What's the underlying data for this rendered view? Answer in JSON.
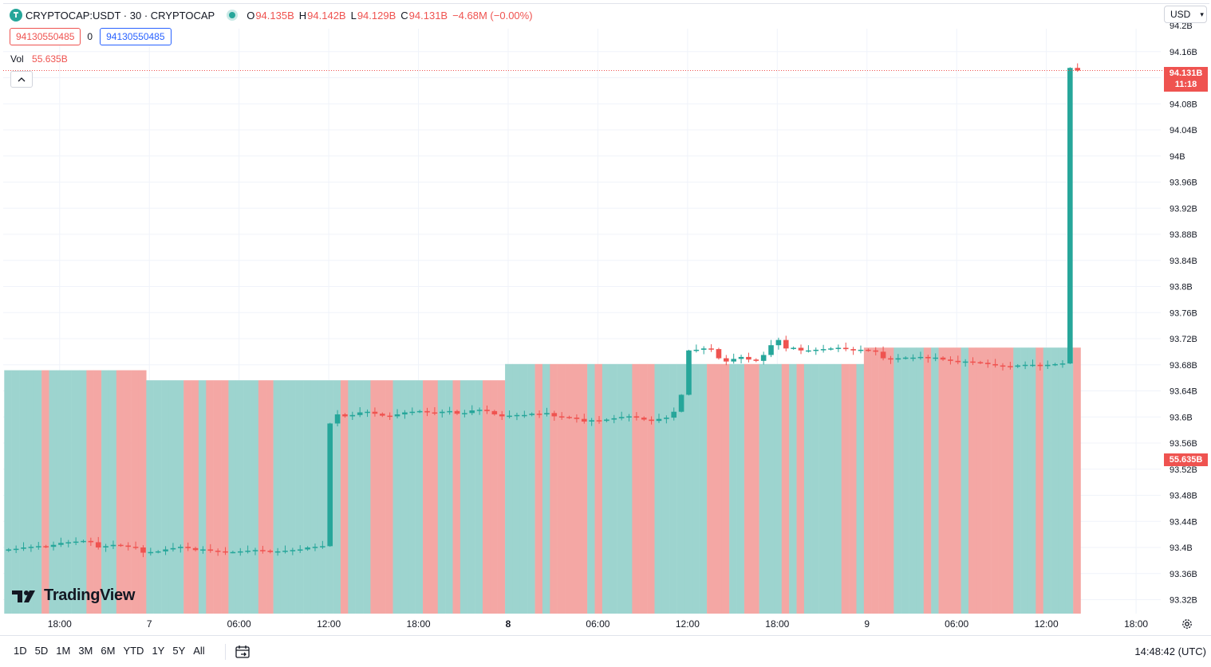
{
  "legend": {
    "symbol": "CRYPTOCAP:USDT · 30 · CRYPTOCAP",
    "o_label": "O",
    "o_value": "94.135B",
    "h_label": "H",
    "h_value": "94.142B",
    "l_label": "L",
    "l_value": "94.129B",
    "c_label": "C",
    "c_value": "94.131B",
    "change": "−4.68M (−0.00%)"
  },
  "inputs": {
    "left": "94130550485",
    "middle": "0",
    "right": "94130550485"
  },
  "volume": {
    "label": "Vol",
    "value": "55.635B"
  },
  "currency": {
    "label": "USD"
  },
  "price_tag": {
    "price": "94.131B",
    "countdown": "11:18"
  },
  "volume_tag": "55.635B",
  "watermark": "TradingView",
  "time_ranges": [
    "1D",
    "5D",
    "1M",
    "3M",
    "6M",
    "YTD",
    "1Y",
    "5Y",
    "All"
  ],
  "clock": "14:48:42 (UTC)",
  "colors": {
    "up": "#26a69a",
    "down": "#ef5350",
    "vol_up": "#9dd4cf",
    "vol_down": "#f4a7a4",
    "grid": "#f0f3fa"
  },
  "icons": {
    "logo": "tether-logo-icon",
    "collapse": "chevron-up-icon",
    "settings": "gear-icon",
    "goto": "calendar-goto-icon",
    "currency_dropdown": "chevron-down-icon"
  },
  "chart_data": {
    "type": "candlestick",
    "interval": "30",
    "y_unit": "B",
    "y_ticks": [
      "94.2B",
      "94.16B",
      "94.12B",
      "94.08B",
      "94.04B",
      "94B",
      "93.96B",
      "93.92B",
      "93.88B",
      "93.84B",
      "93.8B",
      "93.76B",
      "93.72B",
      "93.68B",
      "93.64B",
      "93.6B",
      "93.56B",
      "93.52B",
      "93.48B",
      "93.44B",
      "93.4B",
      "93.36B",
      "93.32B"
    ],
    "y_tick_values": [
      94.2,
      94.16,
      94.12,
      94.08,
      94.04,
      94.0,
      93.96,
      93.92,
      93.88,
      93.84,
      93.8,
      93.76,
      93.72,
      93.68,
      93.64,
      93.6,
      93.56,
      93.52,
      93.48,
      93.44,
      93.4,
      93.36,
      93.32
    ],
    "x_ticks": [
      {
        "label": "18:00",
        "bold": false
      },
      {
        "label": "7",
        "bold": false
      },
      {
        "label": "06:00",
        "bold": false
      },
      {
        "label": "12:00",
        "bold": false
      },
      {
        "label": "18:00",
        "bold": false
      },
      {
        "label": "8",
        "bold": true
      },
      {
        "label": "06:00",
        "bold": false
      },
      {
        "label": "12:00",
        "bold": false
      },
      {
        "label": "18:00",
        "bold": false
      },
      {
        "label": "9",
        "bold": false
      },
      {
        "label": "06:00",
        "bold": false
      },
      {
        "label": "12:00",
        "bold": false
      },
      {
        "label": "18:00",
        "bold": false
      }
    ],
    "x_tick_bar_index": [
      0,
      12,
      24,
      36,
      48,
      60,
      72,
      84,
      96,
      108,
      120,
      132,
      144
    ],
    "last_price": 94.131,
    "volume_last": 55.635,
    "volume_unit": "B",
    "volume_segments": [
      {
        "from_bar": 0,
        "to_bar": 18,
        "value": 50.9
      },
      {
        "from_bar": 19,
        "to_bar": 66,
        "value": 48.8
      },
      {
        "from_bar": 67,
        "to_bar": 114,
        "value": 52.2
      },
      {
        "from_bar": 115,
        "to_bar": 144,
        "value": 55.635
      }
    ],
    "volume_max": 80,
    "closes": [
      93.397,
      93.398,
      93.4,
      93.401,
      93.402,
      93.401,
      93.404,
      93.407,
      93.408,
      93.409,
      93.41,
      93.408,
      93.4,
      93.402,
      93.404,
      93.403,
      93.401,
      93.4,
      93.392,
      93.393,
      93.394,
      93.397,
      93.399,
      93.401,
      93.399,
      93.396,
      93.397,
      93.395,
      93.394,
      93.393,
      93.393,
      93.394,
      93.395,
      93.396,
      93.395,
      93.393,
      93.394,
      93.395,
      93.396,
      93.397,
      93.4,
      93.401,
      93.402,
      93.59,
      93.604,
      93.601,
      93.603,
      93.607,
      93.608,
      93.605,
      93.602,
      93.601,
      93.604,
      93.607,
      93.608,
      93.609,
      93.607,
      93.606,
      93.608,
      93.609,
      93.605,
      93.606,
      93.61,
      93.611,
      93.609,
      93.604,
      93.601,
      93.602,
      93.603,
      93.603,
      93.605,
      93.604,
      93.606,
      93.601,
      93.6,
      93.599,
      93.597,
      93.593,
      93.595,
      93.594,
      93.596,
      93.598,
      93.6,
      93.601,
      93.599,
      93.596,
      93.594,
      93.597,
      93.599,
      93.608,
      93.634,
      93.702,
      93.703,
      93.705,
      93.704,
      93.69,
      93.685,
      93.689,
      93.692,
      93.688,
      93.686,
      93.695,
      93.71,
      93.718,
      93.705,
      93.706,
      93.702,
      93.702,
      93.703,
      93.704,
      93.705,
      93.706,
      93.704,
      93.702,
      93.703,
      93.702,
      93.7,
      93.69,
      93.688,
      93.69,
      93.691,
      93.691,
      93.692,
      93.69,
      93.691,
      93.688,
      93.686,
      93.684,
      93.685,
      93.684,
      93.683,
      93.681,
      93.679,
      93.678,
      93.677,
      93.679,
      93.68,
      93.68,
      93.678,
      93.68,
      93.681,
      93.682,
      94.135,
      94.131
    ],
    "last_candle": {
      "o": 94.135,
      "h": 94.142,
      "l": 94.129,
      "c": 94.131
    }
  }
}
